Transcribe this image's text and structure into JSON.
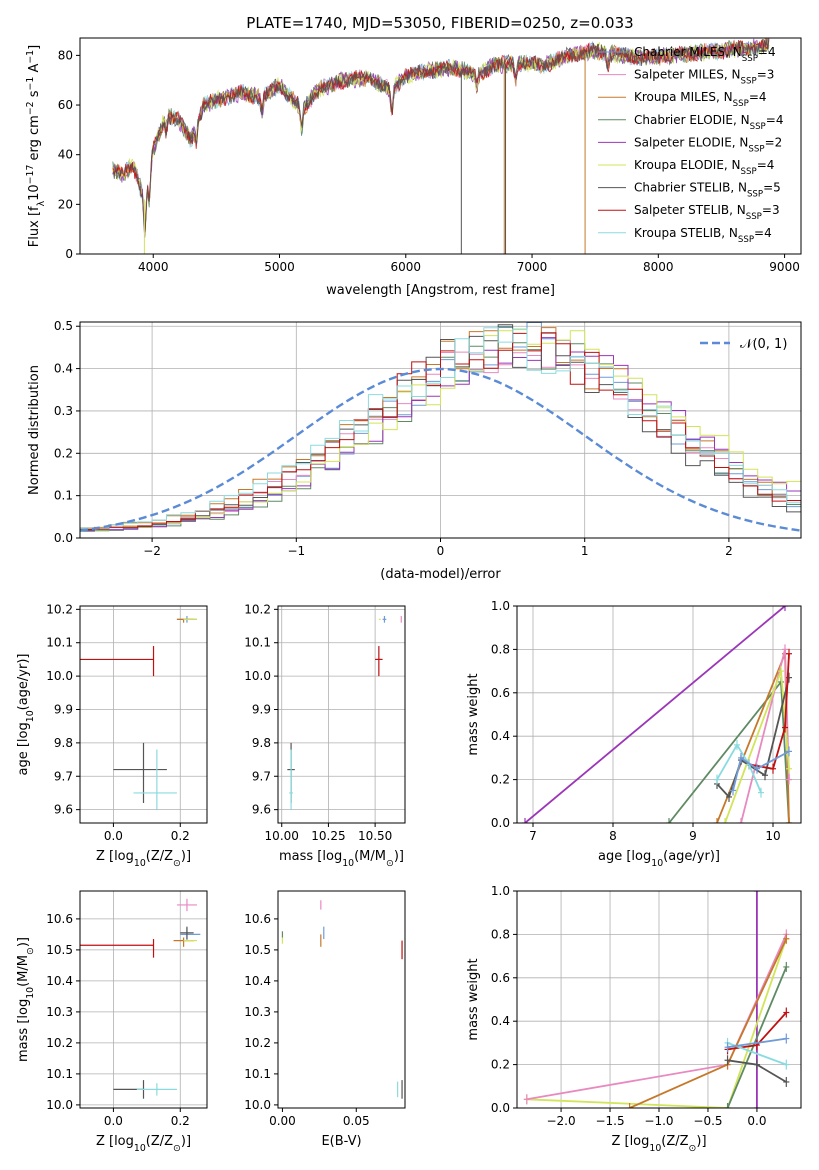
{
  "title": "PLATE=1740, MJD=53050, FIBERID=0250, z=0.033",
  "model_colors": [
    "#6f9bd8",
    "#e889c0",
    "#c6782a",
    "#5f8a63",
    "#9b36b8",
    "#d2e458",
    "#555555",
    "#c01010",
    "#8adbe0"
  ],
  "chart_data": [
    {
      "id": "spectrum",
      "type": "line",
      "title": "PLATE=1740, MJD=53050, FIBERID=0250, z=0.033",
      "xlabel": "wavelength [Angstrom, rest frame]",
      "ylabel_main": "Flux [f",
      "ylabel_sub": "λ",
      "ylabel_rest": "10",
      "ylabel_exp": "−17",
      "ylabel_tail": " erg cm",
      "ylabel_exp2": "−2",
      "ylabel_tail2": " s",
      "ylabel_exp3": "−1",
      "ylabel_tail3": " A",
      "ylabel_exp4": "−1",
      "ylabel_end": "]",
      "xlim": [
        3420,
        9130
      ],
      "ylim": [
        0,
        87
      ],
      "xticks": [
        4000,
        5000,
        6000,
        7000,
        8000,
        9000
      ],
      "yticks": [
        0,
        20,
        40,
        60,
        80
      ],
      "xtick_labels": [
        "4000",
        "5000",
        "6000",
        "7000",
        "8000",
        "9000"
      ],
      "ytick_labels": [
        "0",
        "20",
        "40",
        "60",
        "80"
      ],
      "grid": false,
      "legend_position": "top-right",
      "continuum": {
        "x": [
          3680,
          3760,
          3840,
          3930,
          4000,
          4100,
          4200,
          4300,
          4400,
          4550,
          4700,
          4860,
          5000,
          5180,
          5300,
          5500,
          5700,
          5890,
          6000,
          6200,
          6400,
          6562,
          6700,
          6900,
          7100,
          7300,
          7500,
          7700,
          7900,
          8100,
          8300,
          8500,
          8700,
          8880
        ],
        "y": [
          34,
          32,
          36,
          22,
          42,
          56,
          54,
          46,
          60,
          63,
          65,
          63,
          68,
          58,
          66,
          70,
          71,
          66,
          72,
          74,
          75,
          72,
          76,
          77,
          76,
          80,
          82,
          80,
          79,
          80,
          81,
          82,
          83,
          84
        ]
      },
      "series": [
        {
          "name": "Chabrier MILES, N",
          "sub": "SSP",
          "suffix": "=4"
        },
        {
          "name": "Salpeter MILES, N",
          "sub": "SSP",
          "suffix": "=3"
        },
        {
          "name": "Kroupa MILES, N",
          "sub": "SSP",
          "suffix": "=4"
        },
        {
          "name": "Chabrier ELODIE, N",
          "sub": "SSP",
          "suffix": "=4"
        },
        {
          "name": "Salpeter ELODIE, N",
          "sub": "SSP",
          "suffix": "=2"
        },
        {
          "name": "Kroupa ELODIE, N",
          "sub": "SSP",
          "suffix": "=4"
        },
        {
          "name": "Chabrier STELIB, N",
          "sub": "SSP",
          "suffix": "=5"
        },
        {
          "name": "Salpeter STELIB, N",
          "sub": "SSP",
          "suffix": "=3"
        },
        {
          "name": "Kroupa STELIB, N",
          "sub": "SSP",
          "suffix": "=4"
        }
      ],
      "drops": [
        {
          "x": 3930,
          "series": 5
        },
        {
          "x": 6440,
          "series": 6
        },
        {
          "x": 6780,
          "series": 2
        },
        {
          "x": 6790,
          "series": 6
        },
        {
          "x": 7420,
          "series": 2
        }
      ]
    },
    {
      "id": "residuals",
      "type": "line",
      "xlabel": "(data-model)/error",
      "ylabel": "Normed distribution",
      "xlim": [
        -2.5,
        2.5
      ],
      "ylim": [
        0,
        0.51
      ],
      "xticks": [
        -2,
        -1,
        0,
        1,
        2
      ],
      "yticks": [
        0,
        0.1,
        0.2,
        0.3,
        0.4,
        0.5
      ],
      "xtick_labels": [
        "−2",
        "−1",
        "0",
        "1",
        "2"
      ],
      "ytick_labels": [
        "0.0",
        "0.1",
        "0.2",
        "0.3",
        "0.4",
        "0.5"
      ],
      "grid": true,
      "legend_position": "top-right",
      "normal_label": "𝒩(0, 1)",
      "normal_color": "#5b8bd6",
      "hist_bins": {
        "start": -2.5,
        "width": 0.1
      },
      "hist_shifts": [
        0.55,
        0.55,
        0.5,
        0.6,
        0.65,
        0.7,
        0.45,
        0.5,
        0.5
      ]
    },
    {
      "id": "age-vs-Z",
      "type": "scatter",
      "xlabel": "Z [log",
      "xlabel_sub": "10",
      "xlabel_rest": "(Z/Z",
      "xlabel_sub2": "⊙",
      "xlabel_end": ")]",
      "ylabel": "age  [log",
      "ylabel_sub": "10",
      "ylabel_rest": "(age/yr)]",
      "xlim": [
        -0.1,
        0.28
      ],
      "ylim": [
        9.56,
        10.21
      ],
      "xticks": [
        0,
        0.2
      ],
      "yticks": [
        9.6,
        9.7,
        9.8,
        9.9,
        10.0,
        10.1,
        10.2
      ],
      "xtick_labels": [
        "0.0",
        "0.2"
      ],
      "ytick_labels": [
        "9.6",
        "9.7",
        "9.8",
        "9.9",
        "10.0",
        "10.1",
        "10.2"
      ],
      "grid": true,
      "points": [
        {
          "series": 7,
          "x": 0.12,
          "y": 10.05,
          "xerr": [
            0.22,
            0.0
          ],
          "yerr": [
            0.05,
            0.04
          ]
        },
        {
          "series": 6,
          "x": 0.09,
          "y": 9.72,
          "xerr": [
            0.09,
            0.07
          ],
          "yerr": [
            0.1,
            0.08
          ]
        },
        {
          "series": 8,
          "x": 0.13,
          "y": 9.65,
          "xerr": [
            0.07,
            0.06
          ],
          "yerr": [
            0.05,
            0.13
          ]
        },
        {
          "series": 0,
          "x": 0.22,
          "y": 10.17,
          "xerr": [
            0.03,
            0.03
          ],
          "yerr": [
            0.01,
            0.01
          ]
        },
        {
          "series": 2,
          "x": 0.21,
          "y": 10.17,
          "xerr": [
            0.02,
            0.03
          ],
          "yerr": [
            0.01,
            0.0
          ]
        },
        {
          "series": 5,
          "x": 0.23,
          "y": 10.17,
          "xerr": [
            0.02,
            0.02
          ],
          "yerr": [
            0.0,
            0.0
          ]
        }
      ]
    },
    {
      "id": "age-vs-mass",
      "type": "scatter",
      "xlabel": "mass [log",
      "xlabel_sub": "10",
      "xlabel_rest": "(M/M",
      "xlabel_sub2": "⊙",
      "xlabel_end": ")]",
      "xlim": [
        9.98,
        10.66
      ],
      "ylim": [
        9.56,
        10.21
      ],
      "xticks": [
        10.0,
        10.25,
        10.5
      ],
      "yticks": [
        9.6,
        9.7,
        9.8,
        9.9,
        10.0,
        10.1,
        10.2
      ],
      "xtick_labels": [
        "10.00",
        "10.25",
        "10.50"
      ],
      "ytick_labels": [
        "9.6",
        "9.7",
        "9.8",
        "9.9",
        "10.0",
        "10.1",
        "10.2"
      ],
      "grid": true,
      "points": [
        {
          "series": 7,
          "x": 10.52,
          "y": 10.05,
          "xerr": [
            0.02,
            0.02
          ],
          "yerr": [
            0.05,
            0.04
          ]
        },
        {
          "series": 6,
          "x": 10.05,
          "y": 9.72,
          "xerr": [
            0.02,
            0.02
          ],
          "yerr": [
            0.1,
            0.08
          ]
        },
        {
          "series": 8,
          "x": 10.05,
          "y": 9.65,
          "xerr": [
            0.01,
            0.01
          ],
          "yerr": [
            0.05,
            0.13
          ]
        },
        {
          "series": 0,
          "x": 10.55,
          "y": 10.17,
          "xerr": [
            0.01,
            0.01
          ],
          "yerr": [
            0.01,
            0.01
          ]
        },
        {
          "series": 5,
          "x": 10.53,
          "y": 10.17,
          "xerr": [
            0.01,
            0.0
          ],
          "yerr": [
            0.0,
            0.0
          ]
        },
        {
          "series": 1,
          "x": 10.64,
          "y": 10.17,
          "xerr": [
            0.0,
            0.0
          ],
          "yerr": [
            0.01,
            0.01
          ]
        }
      ]
    },
    {
      "id": "weight-vs-age",
      "type": "line",
      "xlabel": "age  [log",
      "xlabel_sub": "10",
      "xlabel_rest": "(age/yr)]",
      "ylabel": "mass weight",
      "xlim": [
        6.8,
        10.35
      ],
      "ylim": [
        0,
        1.0
      ],
      "xticks": [
        7,
        8,
        9,
        10
      ],
      "yticks": [
        0,
        0.2,
        0.4,
        0.6,
        0.8,
        1.0
      ],
      "xtick_labels": [
        "7",
        "8",
        "9",
        "10"
      ],
      "ytick_labels": [
        "0.0",
        "0.2",
        "0.4",
        "0.6",
        "0.8",
        "1.0"
      ],
      "grid": true,
      "series": [
        {
          "series": 4,
          "x": [
            6.9,
            10.15
          ],
          "y": [
            0.0,
            1.0
          ]
        },
        {
          "series": 3,
          "x": [
            8.7,
            10.1,
            10.2
          ],
          "y": [
            0.0,
            0.65,
            0.0
          ]
        },
        {
          "series": 2,
          "x": [
            9.3,
            10.15,
            10.2
          ],
          "y": [
            0.0,
            0.78,
            0.0
          ]
        },
        {
          "series": 1,
          "x": [
            9.6,
            10.15,
            10.2
          ],
          "y": [
            0.0,
            0.8,
            0.2
          ]
        },
        {
          "series": 5,
          "x": [
            9.4,
            10.1,
            10.2
          ],
          "y": [
            0.0,
            0.7,
            0.25
          ]
        },
        {
          "series": 6,
          "x": [
            9.3,
            9.45,
            9.6,
            9.9,
            10.2
          ],
          "y": [
            0.18,
            0.12,
            0.29,
            0.22,
            0.67
          ]
        },
        {
          "series": 7,
          "x": [
            9.7,
            10.0,
            10.15,
            10.2
          ],
          "y": [
            0.27,
            0.25,
            0.44,
            0.78
          ]
        },
        {
          "series": 8,
          "x": [
            9.3,
            9.55,
            9.7,
            9.85
          ],
          "y": [
            0.2,
            0.36,
            0.27,
            0.14
          ]
        },
        {
          "series": 0,
          "x": [
            9.5,
            9.6,
            9.8,
            10.2
          ],
          "y": [
            0.15,
            0.3,
            0.25,
            0.33
          ]
        }
      ]
    },
    {
      "id": "mass-vs-Z",
      "type": "scatter",
      "xlabel": "Z [log",
      "xlabel_sub": "10",
      "xlabel_rest": "(Z/Z",
      "xlabel_sub2": "⊙",
      "xlabel_end": ")]",
      "ylabel": "mass [log",
      "ylabel_sub": "10",
      "ylabel_rest": "(M/M",
      "ylabel_sub2": "⊙",
      "ylabel_end": ")]",
      "xlim": [
        -0.1,
        0.28
      ],
      "ylim": [
        9.99,
        10.69
      ],
      "xticks": [
        0,
        0.2
      ],
      "yticks": [
        10.0,
        10.1,
        10.2,
        10.3,
        10.4,
        10.5,
        10.6
      ],
      "xtick_labels": [
        "0.0",
        "0.2"
      ],
      "ytick_labels": [
        "10.0",
        "10.1",
        "10.2",
        "10.3",
        "10.4",
        "10.5",
        "10.6"
      ],
      "grid": true,
      "points": [
        {
          "series": 7,
          "x": 0.12,
          "y": 10.515,
          "xerr": [
            0.22,
            0.0
          ],
          "yerr": [
            0.04,
            0.02
          ]
        },
        {
          "series": 6,
          "x": 0.09,
          "y": 10.05,
          "xerr": [
            0.09,
            0.0
          ],
          "yerr": [
            0.03,
            0.03
          ]
        },
        {
          "series": 8,
          "x": 0.13,
          "y": 10.05,
          "xerr": [
            0.06,
            0.06
          ],
          "yerr": [
            0.02,
            0.02
          ]
        },
        {
          "series": 1,
          "x": 0.22,
          "y": 10.645,
          "xerr": [
            0.03,
            0.03
          ],
          "yerr": [
            0.02,
            0.02
          ]
        },
        {
          "series": 0,
          "x": 0.22,
          "y": 10.55,
          "xerr": [
            0.02,
            0.04
          ],
          "yerr": [
            0.02,
            0.02
          ]
        },
        {
          "series": 2,
          "x": 0.21,
          "y": 10.53,
          "xerr": [
            0.03,
            0.03
          ],
          "yerr": [
            0.02,
            0.01
          ]
        },
        {
          "series": 5,
          "x": 0.23,
          "y": 10.53,
          "xerr": [
            0.02,
            0.02
          ],
          "yerr": [
            0.0,
            0.0
          ]
        },
        {
          "series": 6,
          "x": 0.22,
          "y": 10.555,
          "xerr": [
            0.02,
            0.02
          ],
          "yerr": [
            0.02,
            0.02
          ]
        }
      ]
    },
    {
      "id": "mass-vs-ebv",
      "type": "scatter",
      "xlabel": "E(B-V)",
      "xlim": [
        -0.003,
        0.083
      ],
      "ylim": [
        9.99,
        10.69
      ],
      "xticks": [
        0,
        0.05
      ],
      "yticks": [
        10.0,
        10.1,
        10.2,
        10.3,
        10.4,
        10.5,
        10.6
      ],
      "xtick_labels": [
        "0.00",
        "0.05"
      ],
      "ytick_labels": [
        "10.0",
        "10.1",
        "10.2",
        "10.3",
        "10.4",
        "10.5",
        "10.6"
      ],
      "grid": false,
      "points": [
        {
          "series": 1,
          "x": 0.026,
          "y": 10.645,
          "xerr": [
            0,
            0
          ],
          "yerr": [
            0.015,
            0.015
          ]
        },
        {
          "series": 0,
          "x": 0.028,
          "y": 10.555,
          "xerr": [
            0,
            0
          ],
          "yerr": [
            0.02,
            0.02
          ]
        },
        {
          "series": 2,
          "x": 0.026,
          "y": 10.53,
          "xerr": [
            0,
            0
          ],
          "yerr": [
            0.02,
            0.02
          ]
        },
        {
          "series": 3,
          "x": 0.0,
          "y": 10.55,
          "xerr": [
            0,
            0
          ],
          "yerr": [
            0.01,
            0.01
          ]
        },
        {
          "series": 5,
          "x": 0.0,
          "y": 10.53,
          "xerr": [
            0,
            0
          ],
          "yerr": [
            0.01,
            0.01
          ]
        },
        {
          "series": 7,
          "x": 0.081,
          "y": 10.5,
          "xerr": [
            0,
            0
          ],
          "yerr": [
            0.03,
            0.03
          ]
        },
        {
          "series": 8,
          "x": 0.078,
          "y": 10.05,
          "xerr": [
            0,
            0
          ],
          "yerr": [
            0.025,
            0.025
          ]
        },
        {
          "series": 6,
          "x": 0.081,
          "y": 10.05,
          "xerr": [
            0,
            0
          ],
          "yerr": [
            0.03,
            0.03
          ]
        }
      ]
    },
    {
      "id": "weight-vs-Z",
      "type": "line",
      "xlabel": "Z [log",
      "xlabel_sub": "10",
      "xlabel_rest": "(Z/Z",
      "xlabel_sub2": "⊙",
      "xlabel_end": ")]",
      "ylabel": "mass weight",
      "xlim": [
        -2.45,
        0.45
      ],
      "ylim": [
        0,
        1.0
      ],
      "xticks": [
        -2.0,
        -1.5,
        -1.0,
        -0.5,
        0.0
      ],
      "yticks": [
        0,
        0.2,
        0.4,
        0.6,
        0.8,
        1.0
      ],
      "xtick_labels": [
        "−2.0",
        "−1.5",
        "−1.0",
        "−0.5",
        "0.0"
      ],
      "ytick_labels": [
        "0.0",
        "0.2",
        "0.4",
        "0.6",
        "0.8",
        "1.0"
      ],
      "grid": true,
      "series": [
        {
          "series": 4,
          "x": [
            0.0,
            0.0
          ],
          "y": [
            0.0,
            1.0
          ]
        },
        {
          "series": 5,
          "x": [
            -2.35,
            -0.3,
            0.3
          ],
          "y": [
            0.04,
            0.0,
            0.78
          ]
        },
        {
          "series": 1,
          "x": [
            -2.35,
            -0.3,
            0.3
          ],
          "y": [
            0.04,
            0.2,
            0.8
          ]
        },
        {
          "series": 2,
          "x": [
            -1.3,
            -0.3,
            0.3
          ],
          "y": [
            0.0,
            0.2,
            0.78
          ]
        },
        {
          "series": 3,
          "x": [
            -0.3,
            0.3
          ],
          "y": [
            0.0,
            0.65
          ]
        },
        {
          "series": 6,
          "x": [
            -0.3,
            0.0,
            0.3
          ],
          "y": [
            0.22,
            0.2,
            0.12
          ]
        },
        {
          "series": 7,
          "x": [
            -0.3,
            0.0,
            0.3
          ],
          "y": [
            0.27,
            0.29,
            0.44
          ]
        },
        {
          "series": 8,
          "x": [
            -0.3,
            0.3
          ],
          "y": [
            0.3,
            0.2
          ]
        },
        {
          "series": 0,
          "x": [
            -0.3,
            0.3
          ],
          "y": [
            0.28,
            0.32
          ]
        }
      ]
    }
  ]
}
